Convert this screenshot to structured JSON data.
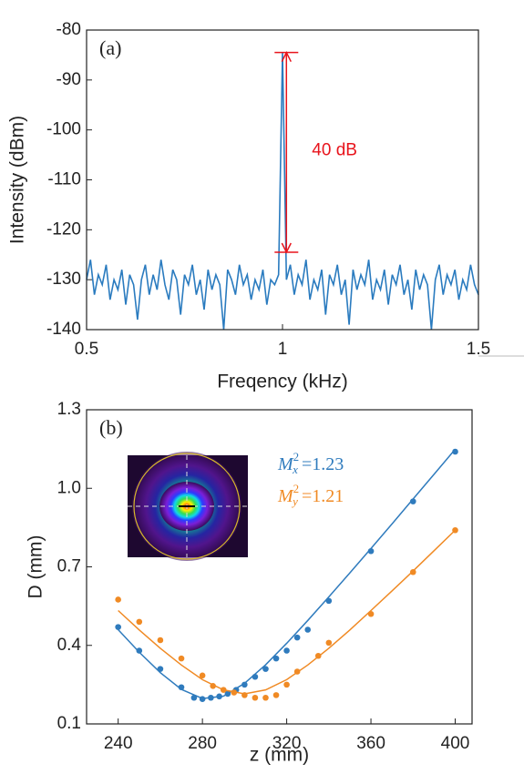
{
  "chart_data": [
    {
      "type": "line",
      "panel_label": "(a)",
      "x_label": "Freqency (kHz)",
      "y_label": "Intensity (dBm)",
      "xlim": [
        0.5,
        1.5
      ],
      "xticks": [
        0.5,
        1,
        1.5
      ],
      "ylim": [
        -140,
        -80
      ],
      "yticks": [
        -140,
        -130,
        -120,
        -110,
        -100,
        -90,
        -80
      ],
      "series": [
        {
          "color": "#2a7bbf",
          "x": [
            0.5,
            0.51,
            0.52,
            0.53,
            0.54,
            0.55,
            0.56,
            0.57,
            0.58,
            0.59,
            0.6,
            0.61,
            0.62,
            0.63,
            0.64,
            0.65,
            0.66,
            0.67,
            0.68,
            0.69,
            0.7,
            0.71,
            0.72,
            0.73,
            0.74,
            0.75,
            0.76,
            0.77,
            0.78,
            0.79,
            0.8,
            0.81,
            0.82,
            0.83,
            0.84,
            0.85,
            0.86,
            0.87,
            0.88,
            0.89,
            0.9,
            0.91,
            0.92,
            0.93,
            0.94,
            0.95,
            0.96,
            0.97,
            0.98,
            0.99,
            1,
            1.01,
            1.02,
            1.03,
            1.04,
            1.05,
            1.06,
            1.07,
            1.08,
            1.09,
            1.1,
            1.11,
            1.12,
            1.13,
            1.14,
            1.15,
            1.16,
            1.17,
            1.18,
            1.19,
            1.2,
            1.21,
            1.22,
            1.23,
            1.24,
            1.25,
            1.26,
            1.27,
            1.28,
            1.29,
            1.3,
            1.31,
            1.32,
            1.33,
            1.34,
            1.35,
            1.36,
            1.37,
            1.38,
            1.39,
            1.4,
            1.41,
            1.42,
            1.43,
            1.44,
            1.45,
            1.46,
            1.47,
            1.48,
            1.49,
            1.5
          ],
          "values": [
            -130,
            -126,
            -133,
            -129,
            -131,
            -127,
            -134,
            -130,
            -132,
            -128,
            -135,
            -129,
            -131,
            -138,
            -130,
            -127,
            -133,
            -129,
            -132,
            -126,
            -131,
            -134,
            -128,
            -130,
            -137,
            -129,
            -131,
            -127,
            -133,
            -130,
            -136,
            -128,
            -132,
            -129,
            -131,
            -140,
            -128,
            -130,
            -133,
            -127,
            -131,
            -129,
            -134,
            -130,
            -132,
            -128,
            -135,
            -130,
            -131,
            -129,
            -84.5,
            -130,
            -127,
            -133,
            -129,
            -131,
            -126,
            -134,
            -130,
            -132,
            -128,
            -137,
            -129,
            -131,
            -127,
            -133,
            -130,
            -139,
            -128,
            -132,
            -129,
            -131,
            -126,
            -134,
            -130,
            -132,
            -128,
            -135,
            -129,
            -131,
            -127,
            -133,
            -130,
            -136,
            -128,
            -132,
            -129,
            -131,
            -140,
            -130,
            -127,
            -133,
            -129,
            -131,
            -128,
            -134,
            -130,
            -132,
            -127,
            -131,
            -133
          ]
        }
      ],
      "annotation": {
        "text": "40 dB",
        "color": "#e8141c",
        "x": 1.01,
        "from": -124.5,
        "to": -84.5
      }
    },
    {
      "type": "scatter",
      "panel_label": "(b)",
      "x_label": "z (mm)",
      "y_label": "D (mm)",
      "xlim": [
        225,
        408
      ],
      "xticks": [
        240,
        280,
        320,
        360,
        400
      ],
      "ylim": [
        0.1,
        1.3
      ],
      "yticks": [
        0.1,
        0.4,
        0.7,
        {
          "value": 1,
          "label": "1.0"
        },
        1.3
      ],
      "fit_x": [
        240,
        250,
        260,
        270,
        280,
        290,
        300,
        310,
        320,
        330,
        340,
        350,
        360,
        370,
        380,
        390,
        400
      ],
      "series": [
        {
          "color": "#2f7bbd",
          "x": [
            240,
            250,
            260,
            270,
            276,
            280,
            284,
            288,
            292,
            296,
            300,
            305,
            310,
            315,
            320,
            325,
            330,
            340,
            360,
            380,
            400
          ],
          "values": [
            0.47,
            0.38,
            0.31,
            0.24,
            0.2,
            0.195,
            0.2,
            0.205,
            0.215,
            0.23,
            0.25,
            0.28,
            0.31,
            0.35,
            0.38,
            0.43,
            0.46,
            0.57,
            0.76,
            0.95,
            1.14
          ],
          "fit_values": [
            0.46,
            0.374,
            0.296,
            0.232,
            0.197,
            0.206,
            0.255,
            0.326,
            0.408,
            0.495,
            0.585,
            0.677,
            0.77,
            0.864,
            0.959,
            1.054,
            1.149
          ],
          "label": {
            "symbol": "M",
            "sub": "x",
            "sup": "2",
            "text": "=1.23"
          }
        },
        {
          "color": "#f08a24",
          "x": [
            240,
            250,
            260,
            270,
            280,
            285,
            290,
            295,
            300,
            305,
            310,
            315,
            320,
            325,
            335,
            340,
            360,
            380,
            400
          ],
          "values": [
            0.575,
            0.49,
            0.42,
            0.35,
            0.285,
            0.245,
            0.23,
            0.22,
            0.21,
            0.2,
            0.2,
            0.21,
            0.25,
            0.3,
            0.36,
            0.41,
            0.52,
            0.68,
            0.84
          ],
          "fit_values": [
            0.533,
            0.459,
            0.389,
            0.325,
            0.269,
            0.23,
            0.215,
            0.23,
            0.269,
            0.325,
            0.389,
            0.459,
            0.533,
            0.608,
            0.684,
            0.762,
            0.84
          ],
          "label": {
            "symbol": "M",
            "sub": "y",
            "sup": "2",
            "text": "=1.21"
          }
        }
      ]
    }
  ]
}
